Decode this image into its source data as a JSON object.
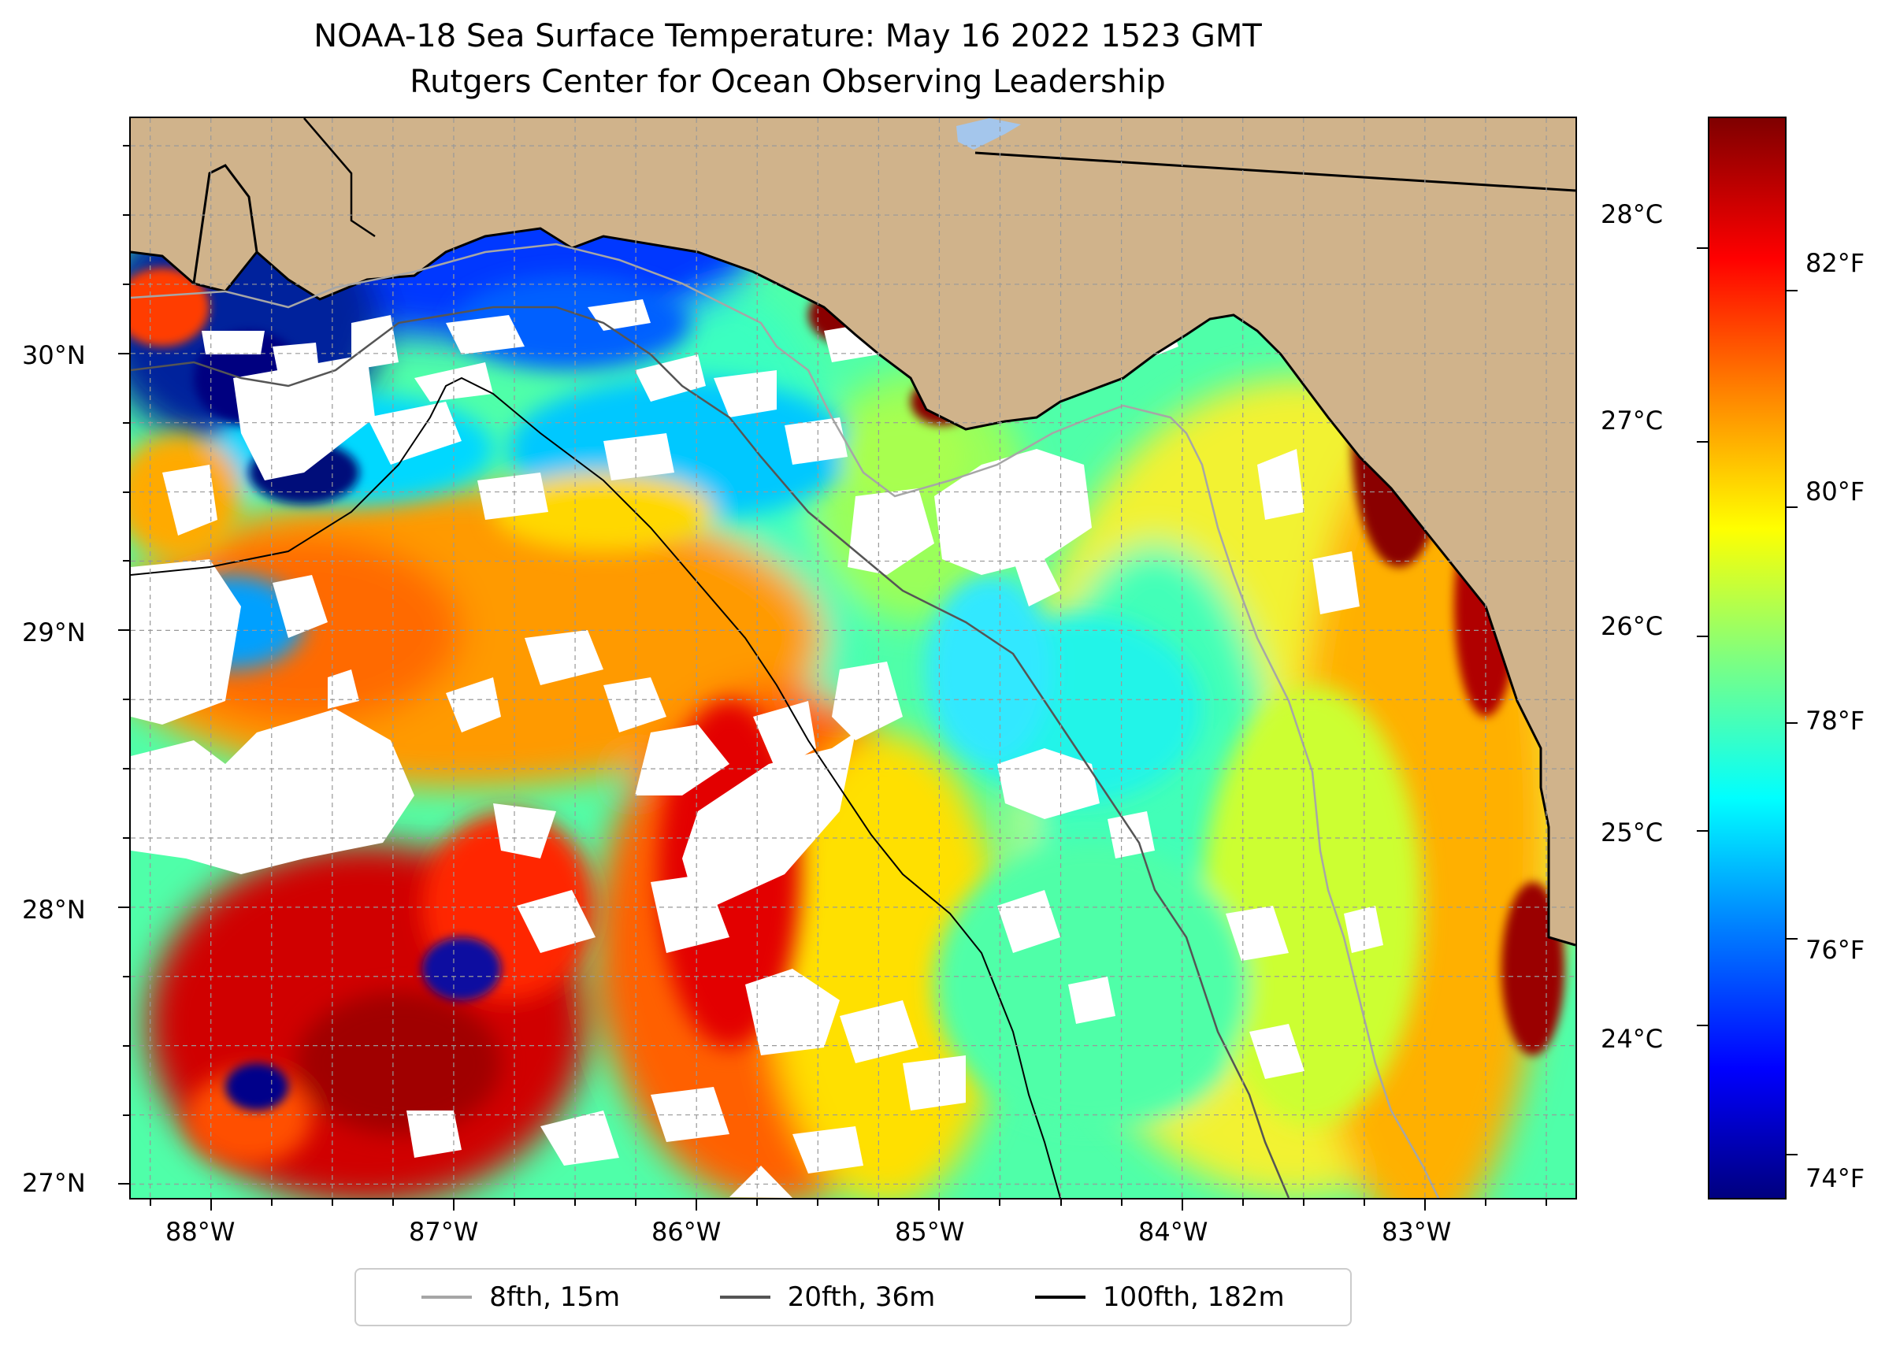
{
  "title_line1": "NOAA-18 Sea Surface Temperature: May 16 2022 1523 GMT",
  "title_line2": "Rutgers Center for Ocean Observing Leadership",
  "map": {
    "longitude_range": [
      -88.33,
      -82.38
    ],
    "latitude_range": [
      26.95,
      30.85
    ],
    "longitude_ticks": [
      {
        "value": -88,
        "label": "88°W"
      },
      {
        "value": -87,
        "label": "87°W"
      },
      {
        "value": -86,
        "label": "86°W"
      },
      {
        "value": -85,
        "label": "85°W"
      },
      {
        "value": -84,
        "label": "84°W"
      },
      {
        "value": -83,
        "label": "83°W"
      }
    ],
    "latitude_ticks": [
      {
        "value": 30,
        "label": "30°N"
      },
      {
        "value": 29,
        "label": "29°N"
      },
      {
        "value": 28,
        "label": "28°N"
      },
      {
        "value": 27,
        "label": "27°N"
      }
    ],
    "gridlines": true,
    "land_color": "#d0b38b",
    "cloud_mask_color": "#ffffff",
    "colormap": "jet"
  },
  "colorbar": {
    "celsius_ticks": [
      {
        "value": 28,
        "label": "28°C"
      },
      {
        "value": 27,
        "label": "27°C"
      },
      {
        "value": 26,
        "label": "26°C"
      },
      {
        "value": 25,
        "label": "25°C"
      },
      {
        "value": 24,
        "label": "24°C"
      }
    ],
    "fahrenheit_ticks": [
      {
        "value": 82,
        "label": "82°F"
      },
      {
        "value": 80,
        "label": "80°F"
      },
      {
        "value": 78,
        "label": "78°F"
      },
      {
        "value": 76,
        "label": "76°F"
      },
      {
        "value": 74,
        "label": "74°F"
      }
    ],
    "range_f": [
      73.6,
      83.6
    ]
  },
  "legend": {
    "placement": "bottom-center",
    "items": [
      {
        "label": "8fth, 15m",
        "color": "#a6a6a6"
      },
      {
        "label": "20fth, 36m",
        "color": "#555555"
      },
      {
        "label": "100fth, 182m",
        "color": "#000000"
      }
    ]
  }
}
